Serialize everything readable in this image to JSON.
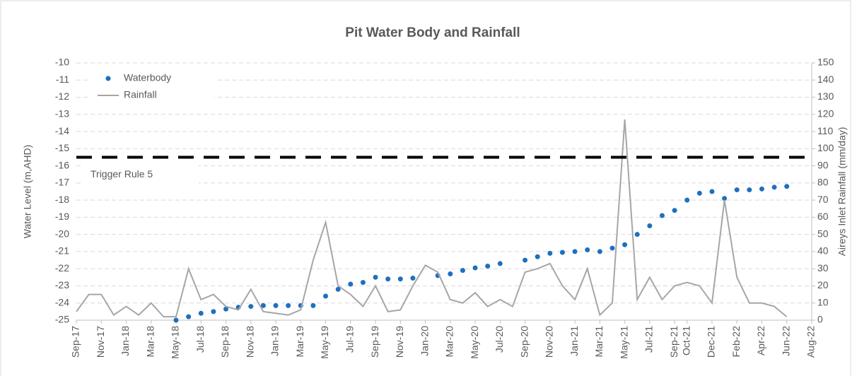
{
  "chart_data": {
    "type": "scatter",
    "title": "Pit Water Body and Rainfall",
    "y_label": "Water Level (m,AHD)",
    "y2_label": "Aireys Inlet Rainfall (mm/day)",
    "xlim": [
      "2017-09",
      "2022-08"
    ],
    "xticks": [
      {
        "value": "2017-09",
        "label": "Sep-17"
      },
      {
        "value": "2017-11",
        "label": "Nov-17"
      },
      {
        "value": "2018-01",
        "label": "Jan-18"
      },
      {
        "value": "2018-03",
        "label": "Mar-18"
      },
      {
        "value": "2018-05",
        "label": "May-18"
      },
      {
        "value": "2018-07",
        "label": "Jul-18"
      },
      {
        "value": "2018-09",
        "label": "Sep-18"
      },
      {
        "value": "2018-11",
        "label": "Nov-18"
      },
      {
        "value": "2019-01",
        "label": "Jan-19"
      },
      {
        "value": "2019-03",
        "label": "Mar-19"
      },
      {
        "value": "2019-05",
        "label": "May-19"
      },
      {
        "value": "2019-07",
        "label": "Jul-19"
      },
      {
        "value": "2019-09",
        "label": "Sep-19"
      },
      {
        "value": "2019-11",
        "label": "Nov-19"
      },
      {
        "value": "2020-01",
        "label": "Jan-20"
      },
      {
        "value": "2020-03",
        "label": "Mar-20"
      },
      {
        "value": "2020-05",
        "label": "May-20"
      },
      {
        "value": "2020-07",
        "label": "Jul-20"
      },
      {
        "value": "2020-09",
        "label": "Sep-20"
      },
      {
        "value": "2020-11",
        "label": "Nov-20"
      },
      {
        "value": "2021-01",
        "label": "Jan-21"
      },
      {
        "value": "2021-03",
        "label": "Mar-21"
      },
      {
        "value": "2021-05",
        "label": "May-21"
      },
      {
        "value": "2021-07",
        "label": "Jul-21"
      },
      {
        "value": "2021-09",
        "label": "Sep-21"
      },
      {
        "value": "2021-10",
        "label": "Oct-21"
      },
      {
        "value": "2021-12",
        "label": "Dec-21"
      },
      {
        "value": "2022-02",
        "label": "Feb-22"
      },
      {
        "value": "2022-04",
        "label": "Apr-22"
      },
      {
        "value": "2022-06",
        "label": "Jun-22"
      },
      {
        "value": "2022-08",
        "label": "Aug-22"
      }
    ],
    "ylim": [
      -25,
      -10
    ],
    "yticks": [
      -25,
      -24,
      -23,
      -22,
      -21,
      -20,
      -19,
      -18,
      -17,
      -16,
      -15,
      -14,
      -13,
      -12,
      -11,
      -10
    ],
    "y2lim": [
      0,
      150
    ],
    "y2ticks": [
      0,
      10,
      20,
      30,
      40,
      50,
      60,
      70,
      80,
      90,
      100,
      110,
      120,
      130,
      140,
      150
    ],
    "grid": true,
    "legend": "top-left",
    "trigger": {
      "value": -15.5,
      "label": "Trigger Rule 5"
    },
    "series": [
      {
        "name": "Waterbody",
        "color": "#1f6fbf",
        "x": [
          "2018-05",
          "2018-06",
          "2018-07",
          "2018-08",
          "2018-09",
          "2018-10",
          "2018-11",
          "2018-12",
          "2019-01",
          "2019-02",
          "2019-03",
          "2019-04",
          "2019-05",
          "2019-06",
          "2019-07",
          "2019-08",
          "2019-09",
          "2019-10",
          "2019-11",
          "2019-12",
          "2020-02",
          "2020-03",
          "2020-04",
          "2020-05",
          "2020-06",
          "2020-07",
          "2020-09",
          "2020-10",
          "2020-11",
          "2020-12",
          "2021-01",
          "2021-02",
          "2021-03",
          "2021-04",
          "2021-05",
          "2021-06",
          "2021-07",
          "2021-08",
          "2021-09",
          "2021-10",
          "2021-11",
          "2021-12",
          "2022-01",
          "2022-02",
          "2022-03",
          "2022-04",
          "2022-05",
          "2022-06"
        ],
        "values": [
          -25,
          -24.8,
          -24.6,
          -24.5,
          -24.35,
          -24.25,
          -24.2,
          -24.15,
          -24.15,
          -24.15,
          -24.15,
          -24.15,
          -23.6,
          -23.2,
          -22.9,
          -22.8,
          -22.5,
          -22.6,
          -22.6,
          -22.55,
          -22.4,
          -22.3,
          -22.1,
          -21.95,
          -21.85,
          -21.7,
          -21.5,
          -21.3,
          -21.1,
          -21.05,
          -21.0,
          -20.9,
          -21.0,
          -20.8,
          -20.6,
          -20.0,
          -19.5,
          -18.9,
          -18.6,
          -18.0,
          -17.6,
          -17.5,
          -17.9,
          -17.4,
          -17.4,
          -17.35,
          -17.25,
          -17.2
        ]
      },
      {
        "name": "Rainfall",
        "color": "#a6a6a6",
        "axis": "y2",
        "x": [
          "2017-09",
          "2017-10",
          "2017-11",
          "2017-12",
          "2018-01",
          "2018-02",
          "2018-03",
          "2018-04",
          "2018-05",
          "2018-06",
          "2018-07",
          "2018-08",
          "2018-09",
          "2018-10",
          "2018-11",
          "2018-12",
          "2019-01",
          "2019-02",
          "2019-03",
          "2019-04",
          "2019-05",
          "2019-06",
          "2019-07",
          "2019-08",
          "2019-09",
          "2019-10",
          "2019-11",
          "2019-12",
          "2020-01",
          "2020-02",
          "2020-03",
          "2020-04",
          "2020-05",
          "2020-06",
          "2020-07",
          "2020-08",
          "2020-09",
          "2020-10",
          "2020-11",
          "2020-12",
          "2021-01",
          "2021-02",
          "2021-03",
          "2021-04",
          "2021-05",
          "2021-06",
          "2021-07",
          "2021-08",
          "2021-09",
          "2021-10",
          "2021-11",
          "2021-12",
          "2022-01",
          "2022-02",
          "2022-03",
          "2022-04",
          "2022-05",
          "2022-06"
        ],
        "values": [
          5,
          15,
          15,
          3,
          8,
          3,
          10,
          2,
          2,
          30,
          12,
          15,
          8,
          6,
          18,
          5,
          4,
          3,
          6,
          35,
          57,
          20,
          15,
          8,
          20,
          5,
          6,
          20,
          32,
          28,
          12,
          10,
          16,
          8,
          12,
          8,
          28,
          30,
          33,
          20,
          12,
          30,
          3,
          10,
          117,
          12,
          25,
          12,
          20,
          22,
          20,
          10,
          70,
          25,
          10,
          10,
          8,
          2
        ]
      }
    ]
  }
}
